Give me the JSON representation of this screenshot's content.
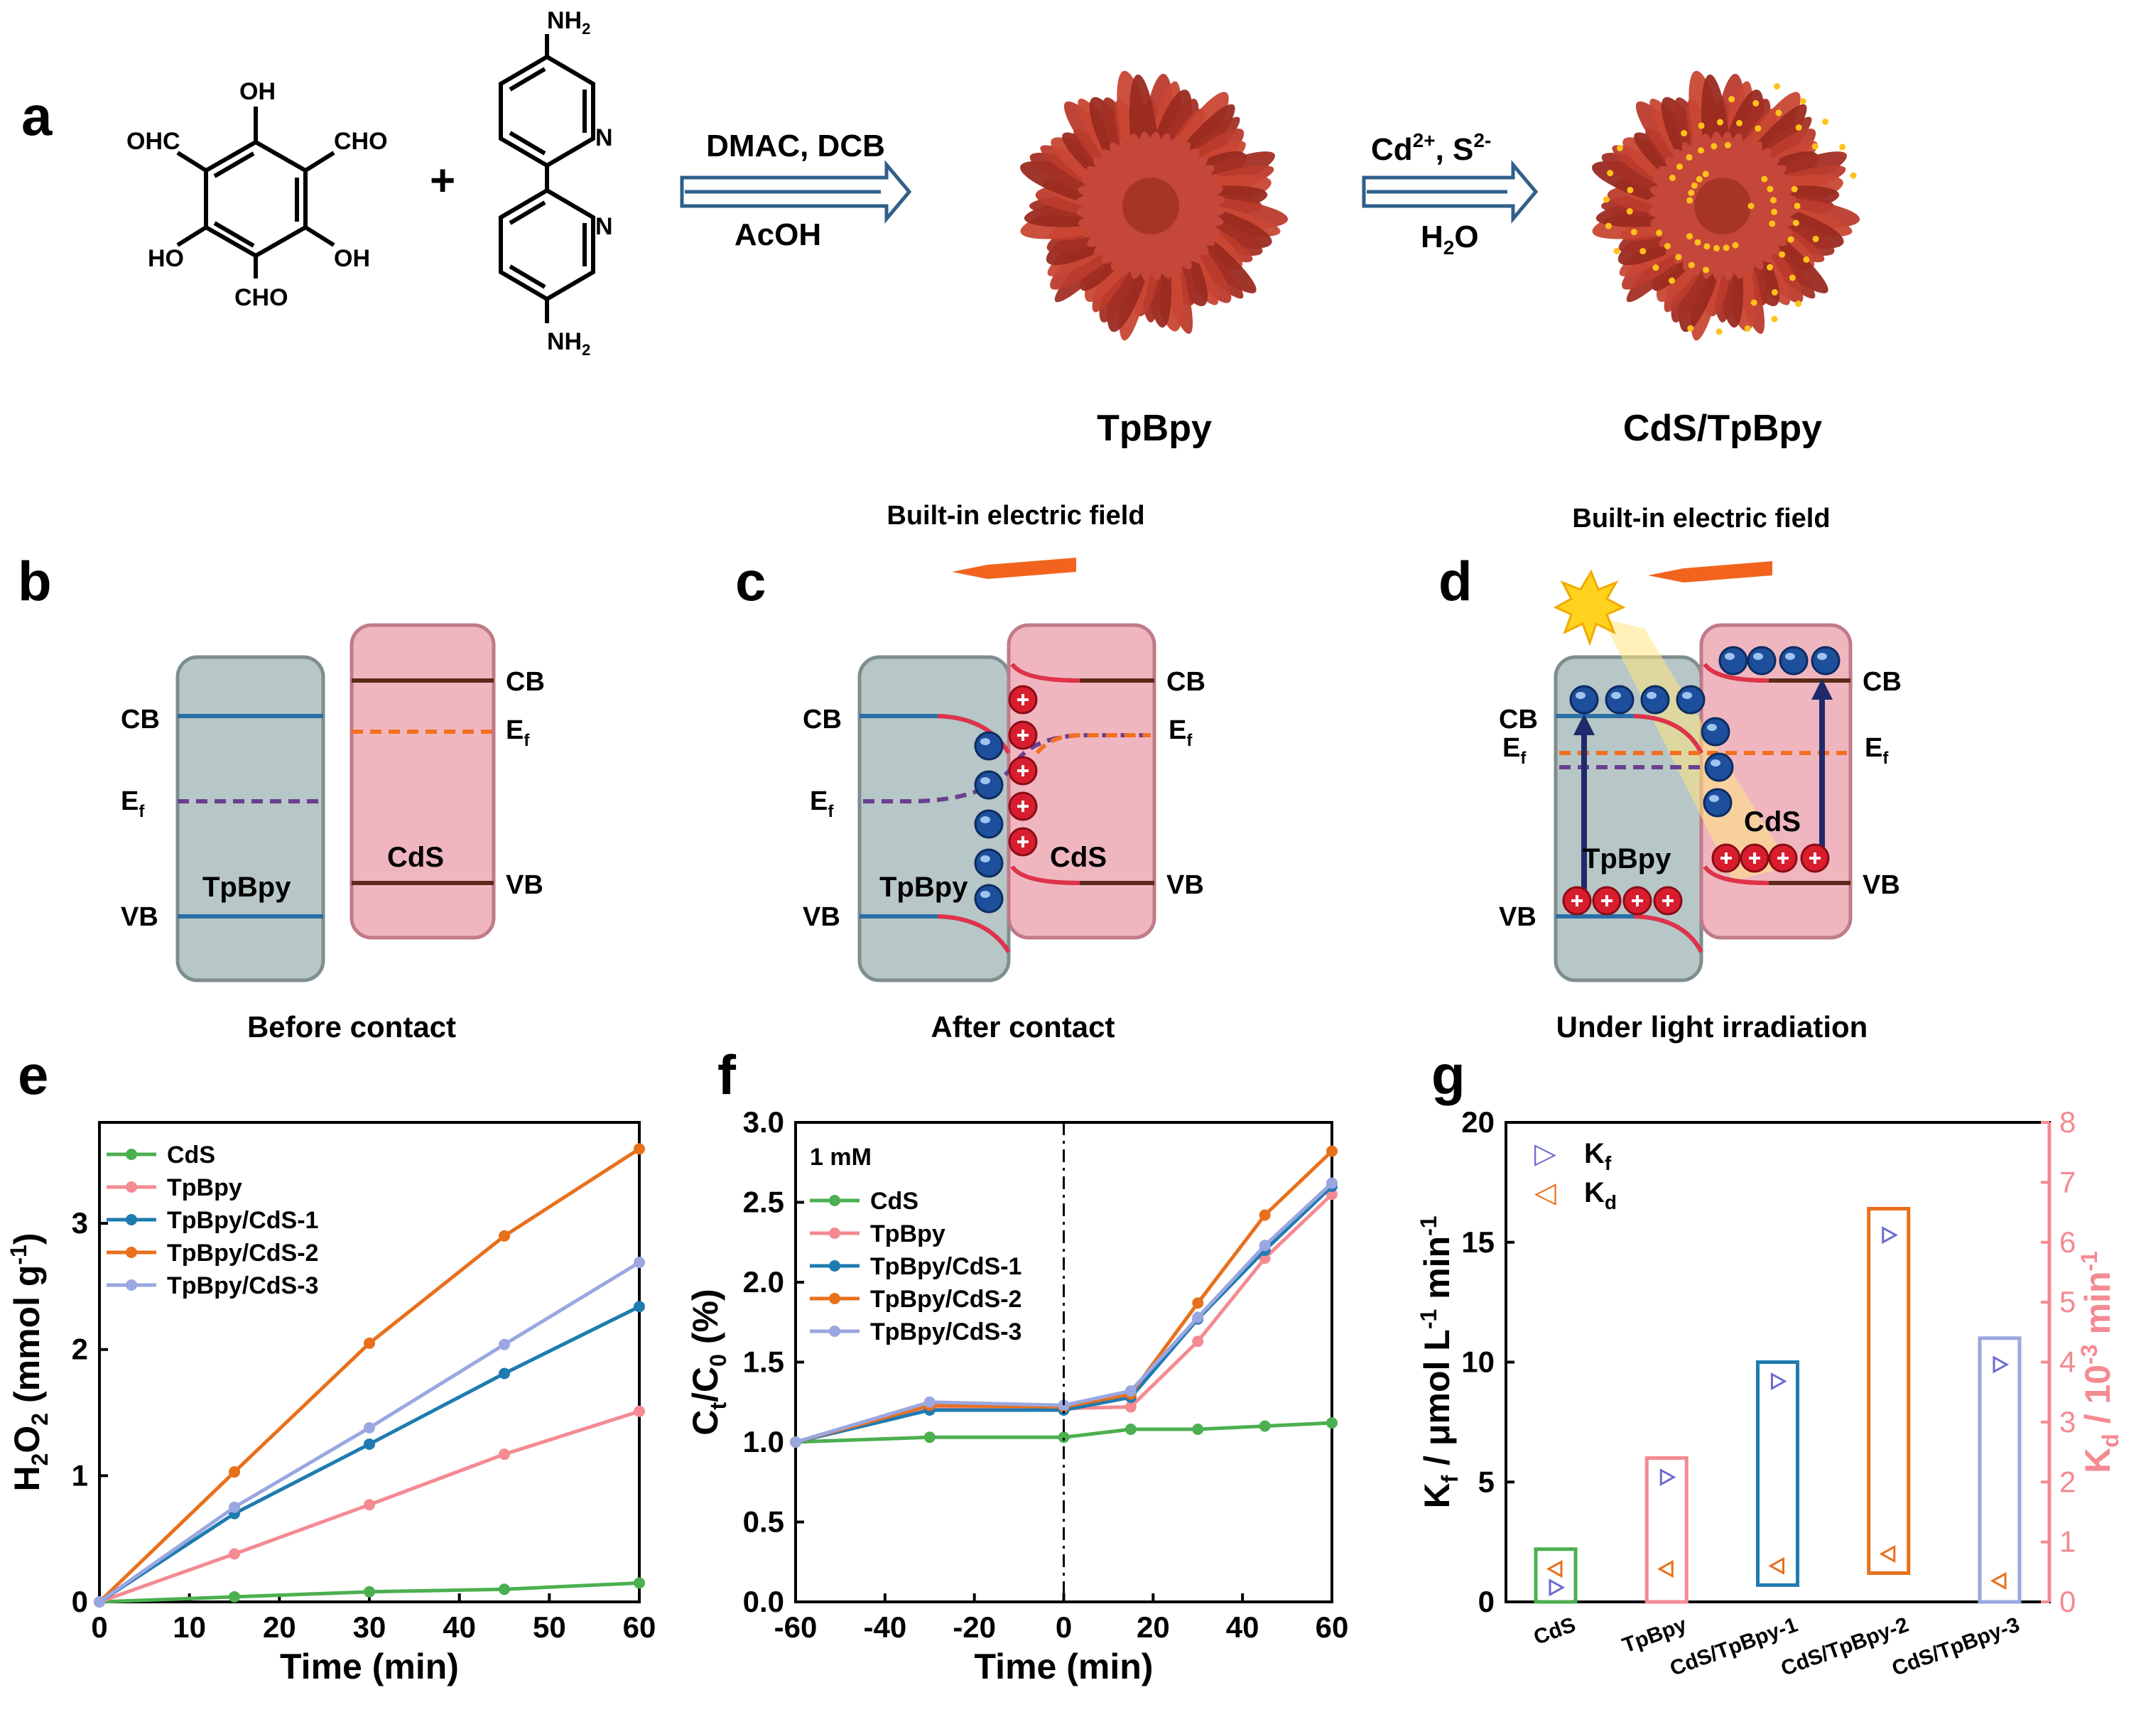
{
  "colors": {
    "tp_fill": "#b7c6c6",
    "cds_fill": "#f0b6c0",
    "band_blue": "#2a6fa8",
    "band_brown": "#5a2a1a",
    "ef_purple": "#6a3f8f",
    "ef_orange": "#f37021",
    "bend_red": "#e0324a",
    "flower": "#b5372a",
    "arrow_blue": "#2f5f8a",
    "field_arrow": "#f2641e",
    "s_cds": "#4caf50",
    "s_tpbpy": "#f48a92",
    "s_1": "#1f7bb0",
    "s_2": "#e8701c",
    "s_3": "#9aa7e0"
  },
  "panels": {
    "a": {
      "letter": "a",
      "plus": "+",
      "mol1": {
        "oh_top": "OH",
        "cho_left": "OHC",
        "cho_right": "CHO",
        "ho_left": "HO",
        "oh_right": "OH",
        "cho_bottom": "CHO"
      },
      "mol2": {
        "nh2_top": "NH",
        "nh2_bottom": "NH",
        "sub2": "2",
        "n1": "N",
        "n2": "N"
      },
      "step1": {
        "top": "DMAC, DCB",
        "bottom": "AcOH"
      },
      "step2": {
        "top_a": "Cd",
        "top_a_sup": "2+",
        "top_b": ", S",
        "top_b_sup": "2-",
        "bottom_a": "H",
        "bottom_sub": "2",
        "bottom_b": "O"
      },
      "label_tpbpy": "TpBpy",
      "label_cds": "CdS/TpBpy"
    },
    "b": {
      "letter": "b",
      "cb": "CB",
      "vb": "VB",
      "ef": "E",
      "ef_sub": "f",
      "tp_label": "TpBpy",
      "cds_label": "CdS",
      "caption": "Before contact"
    },
    "c": {
      "letter": "c",
      "field": "Built-in electric field",
      "cb": "CB",
      "vb": "VB",
      "ef": "E",
      "ef_sub": "f",
      "tp_label": "TpBpy",
      "cds_label": "CdS",
      "caption": "After contact"
    },
    "d": {
      "letter": "d",
      "field": "Built-in electric field",
      "cb": "CB",
      "vb": "VB",
      "ef": "E",
      "ef_sub": "f",
      "tp_label": "TpBpy",
      "cds_label": "CdS",
      "caption": "Under light irradiation"
    },
    "e": {
      "letter": "e"
    },
    "f": {
      "letter": "f"
    },
    "g": {
      "letter": "g"
    }
  },
  "chart_data": [
    {
      "id": "e",
      "type": "line",
      "xlabel": "Time (min)",
      "ylabel": "H2O2 (mmol g-1)",
      "ylabel_parts": {
        "a": "H",
        "s1": "2",
        "b": "O",
        "s2": "2",
        "c": " (mmol g",
        "sup": "-1",
        "d": ")"
      },
      "xlim": [
        0,
        60
      ],
      "ylim": [
        0,
        3.8
      ],
      "xticks": [
        "0",
        "10",
        "20",
        "30",
        "40",
        "50",
        "60"
      ],
      "yticks": [
        "0",
        "1",
        "2",
        "3"
      ],
      "x": [
        0,
        15,
        30,
        45,
        60
      ],
      "series": [
        {
          "name": "CdS",
          "values": [
            0,
            0.04,
            0.08,
            0.1,
            0.15
          ]
        },
        {
          "name": "TpBpy",
          "values": [
            0,
            0.38,
            0.77,
            1.17,
            1.51
          ]
        },
        {
          "name": "TpBpy/CdS-1",
          "values": [
            0,
            0.7,
            1.25,
            1.81,
            2.34
          ]
        },
        {
          "name": "TpBpy/CdS-2",
          "values": [
            0,
            1.03,
            2.05,
            2.9,
            3.59
          ]
        },
        {
          "name": "TpBpy/CdS-3",
          "values": [
            0,
            0.75,
            1.38,
            2.04,
            2.69
          ]
        }
      ]
    },
    {
      "id": "f",
      "type": "line",
      "annotation": "1 mM",
      "xlabel": "Time (min)",
      "ylabel_parts": {
        "a": "C",
        "s1": "t",
        "b": "/C",
        "s2": "0",
        "c": " (%)"
      },
      "ylabel": "Ct/C0 (%)",
      "xlim": [
        -60,
        60
      ],
      "ylim": [
        0,
        3.0
      ],
      "xticks": [
        "-60",
        "-40",
        "-20",
        "0",
        "20",
        "40",
        "60"
      ],
      "yticks": [
        "0.0",
        "0.5",
        "1.0",
        "1.5",
        "2.0",
        "2.5",
        "3.0"
      ],
      "x": [
        -60,
        -30,
        0,
        15,
        30,
        45,
        60
      ],
      "series": [
        {
          "name": "CdS",
          "values": [
            1.0,
            1.03,
            1.03,
            1.08,
            1.08,
            1.1,
            1.12
          ]
        },
        {
          "name": "TpBpy",
          "values": [
            1.0,
            1.22,
            1.21,
            1.22,
            1.63,
            2.15,
            2.55
          ]
        },
        {
          "name": "TpBpy/CdS-1",
          "values": [
            1.0,
            1.2,
            1.2,
            1.28,
            1.77,
            2.2,
            2.6
          ]
        },
        {
          "name": "TpBpy/CdS-2",
          "values": [
            1.0,
            1.23,
            1.22,
            1.3,
            1.87,
            2.42,
            2.82
          ]
        },
        {
          "name": "TpBpy/CdS-3",
          "values": [
            1.0,
            1.25,
            1.23,
            1.32,
            1.78,
            2.23,
            2.62
          ]
        }
      ]
    },
    {
      "id": "g",
      "type": "scatter",
      "categories": [
        "CdS",
        "TpBpy",
        "CdS/TpBpy-1",
        "CdS/TpBpy-2",
        "CdS/TpBpy-3"
      ],
      "ylabel_left": "Kf / μmol L-1 min-1",
      "ylabel_left_parts": {
        "a": "K",
        "s1": "f",
        "b": " / μmol L",
        "sup1": "-1",
        "c": " min",
        "sup2": "-1"
      },
      "ylabel_right": "Kd / 10-3 min-1",
      "ylabel_right_parts": {
        "a": "K",
        "s1": "d",
        "b": " / 10",
        "sup1": "-3",
        "c": " min",
        "sup2": "-1"
      },
      "ylim_left": [
        0,
        20
      ],
      "ylim_right": [
        0,
        8
      ],
      "yticks_left": [
        "0",
        "5",
        "10",
        "15",
        "20"
      ],
      "yticks_right": [
        "0",
        "1",
        "2",
        "3",
        "4",
        "5",
        "6",
        "7",
        "8"
      ],
      "legend": [
        {
          "name": "K",
          "sub": "f",
          "symbol": "▷"
        },
        {
          "name": "K",
          "sub": "d",
          "symbol": "◁"
        }
      ],
      "series": [
        {
          "name": "Kf",
          "axis": "left",
          "values": [
            0.6,
            5.2,
            9.2,
            15.3,
            9.9
          ]
        },
        {
          "name": "Kd",
          "axis": "right",
          "values": [
            0.55,
            0.55,
            0.6,
            0.8,
            0.35
          ]
        }
      ],
      "box_ranges_left": [
        [
          0,
          2.2
        ],
        [
          0,
          6.0
        ],
        [
          0.7,
          10.0
        ],
        [
          1.2,
          16.4
        ],
        [
          0,
          11.0
        ]
      ]
    }
  ]
}
